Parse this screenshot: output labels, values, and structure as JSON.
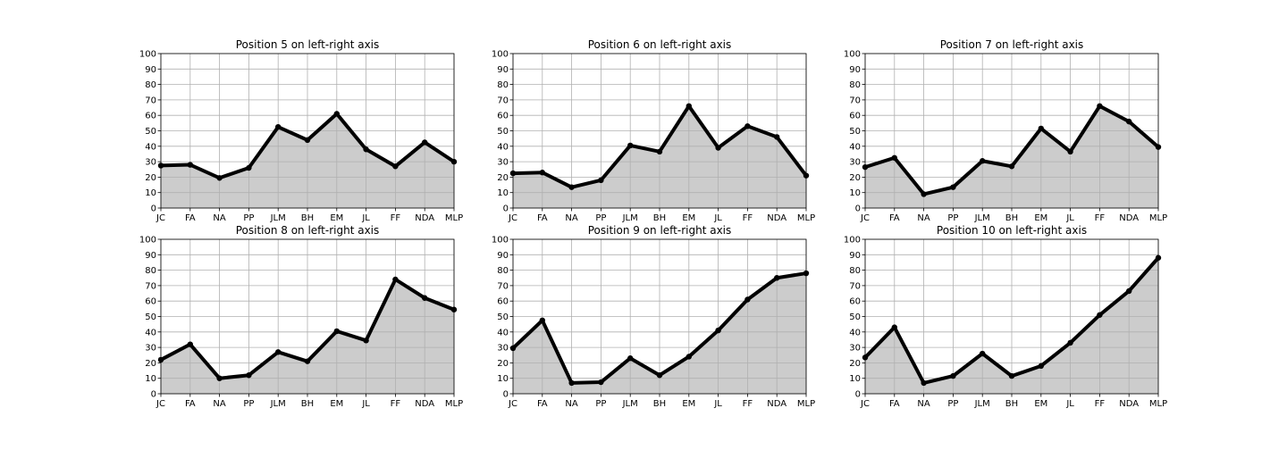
{
  "chart_data": [
    {
      "type": "area",
      "title": "Position 5 on left-right axis",
      "categories": [
        "JC",
        "FA",
        "NA",
        "PP",
        "JLM",
        "BH",
        "EM",
        "JL",
        "FF",
        "NDA",
        "MLP"
      ],
      "values": [
        27.5,
        28,
        19.5,
        26,
        52.5,
        44,
        61,
        38,
        27,
        42.5,
        30
      ],
      "ylim": [
        0,
        100
      ],
      "yticks": [
        0,
        10,
        20,
        30,
        40,
        50,
        60,
        70,
        80,
        90,
        100
      ],
      "grid": true,
      "line_color": "#000000",
      "fill_color": "#cccccc"
    },
    {
      "type": "area",
      "title": "Position 6 on left-right axis",
      "categories": [
        "JC",
        "FA",
        "NA",
        "PP",
        "JLM",
        "BH",
        "EM",
        "JL",
        "FF",
        "NDA",
        "MLP"
      ],
      "values": [
        22.5,
        23,
        13.5,
        18,
        40.5,
        36.5,
        66,
        39,
        53,
        46,
        21
      ],
      "ylim": [
        0,
        100
      ],
      "yticks": [
        0,
        10,
        20,
        30,
        40,
        50,
        60,
        70,
        80,
        90,
        100
      ],
      "grid": true,
      "line_color": "#000000",
      "fill_color": "#cccccc"
    },
    {
      "type": "area",
      "title": "Position 7 on left-right axis",
      "categories": [
        "JC",
        "FA",
        "NA",
        "PP",
        "JLM",
        "BH",
        "EM",
        "JL",
        "FF",
        "NDA",
        "MLP"
      ],
      "values": [
        26.5,
        32.5,
        9,
        13.5,
        30.5,
        27,
        51.5,
        36.5,
        66,
        56,
        39.5
      ],
      "ylim": [
        0,
        100
      ],
      "yticks": [
        0,
        10,
        20,
        30,
        40,
        50,
        60,
        70,
        80,
        90,
        100
      ],
      "grid": true,
      "line_color": "#000000",
      "fill_color": "#cccccc"
    },
    {
      "type": "area",
      "title": "Position 8 on left-right axis",
      "categories": [
        "JC",
        "FA",
        "NA",
        "PP",
        "JLM",
        "BH",
        "EM",
        "JL",
        "FF",
        "NDA",
        "MLP"
      ],
      "values": [
        22,
        32,
        10,
        12,
        27,
        21,
        40.5,
        34.5,
        74,
        62,
        54.5
      ],
      "ylim": [
        0,
        100
      ],
      "yticks": [
        0,
        10,
        20,
        30,
        40,
        50,
        60,
        70,
        80,
        90,
        100
      ],
      "grid": true,
      "line_color": "#000000",
      "fill_color": "#cccccc"
    },
    {
      "type": "area",
      "title": "Position 9 on left-right axis",
      "categories": [
        "JC",
        "FA",
        "NA",
        "PP",
        "JLM",
        "BH",
        "EM",
        "JL",
        "FF",
        "NDA",
        "MLP"
      ],
      "values": [
        29.5,
        47.5,
        7,
        7.5,
        23,
        12,
        24,
        41,
        61,
        75,
        78
      ],
      "ylim": [
        0,
        100
      ],
      "yticks": [
        0,
        10,
        20,
        30,
        40,
        50,
        60,
        70,
        80,
        90,
        100
      ],
      "grid": true,
      "line_color": "#000000",
      "fill_color": "#cccccc"
    },
    {
      "type": "area",
      "title": "Position 10 on left-right axis",
      "categories": [
        "JC",
        "FA",
        "NA",
        "PP",
        "JLM",
        "BH",
        "EM",
        "JL",
        "FF",
        "NDA",
        "MLP"
      ],
      "values": [
        23.5,
        43,
        7,
        11.5,
        26,
        11.5,
        18,
        33,
        51,
        66.5,
        88
      ],
      "ylim": [
        0,
        100
      ],
      "yticks": [
        0,
        10,
        20,
        30,
        40,
        50,
        60,
        70,
        80,
        90,
        100
      ],
      "grid": true,
      "line_color": "#000000",
      "fill_color": "#cccccc"
    }
  ]
}
